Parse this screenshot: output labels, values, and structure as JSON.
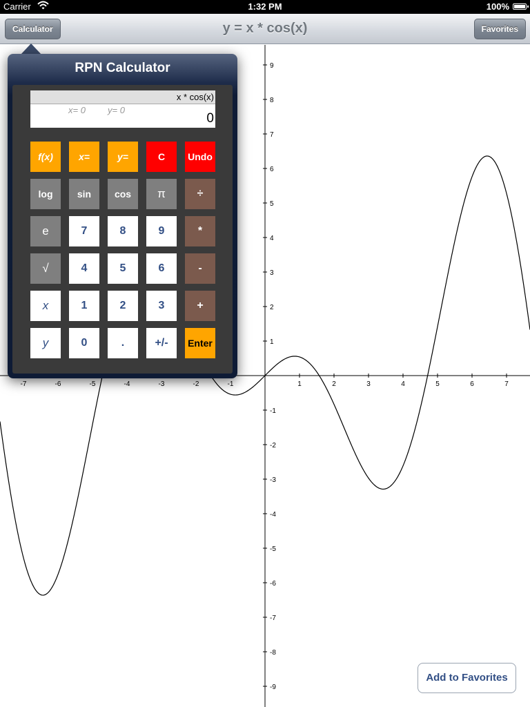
{
  "status_bar": {
    "carrier": "Carrier",
    "time": "1:32 PM",
    "battery": "100%"
  },
  "nav": {
    "title": "y = x * cos(x)",
    "left_button": "Calculator",
    "right_button": "Favorites"
  },
  "graph": {
    "function": "x * cos(x)",
    "x_ticks": [
      "-7",
      "-6",
      "-5",
      "-4",
      "-3",
      "-2",
      "-1",
      "1",
      "2",
      "3",
      "4",
      "5",
      "6",
      "7"
    ],
    "y_ticks": [
      "9",
      "8",
      "7",
      "6",
      "5",
      "4",
      "3",
      "2",
      "1",
      "-1",
      "-2",
      "-3",
      "-4",
      "-5",
      "-6",
      "-7",
      "-8",
      "-9"
    ]
  },
  "add_favorites": "Add to Favorites",
  "calculator": {
    "title": "RPN Calculator",
    "display": {
      "function": "x * cos(x)",
      "x_value": "x= 0",
      "y_value": "y= 0",
      "value": "0"
    },
    "keys": [
      [
        "f(x)",
        "x=",
        "y=",
        "C",
        "Undo"
      ],
      [
        "log",
        "sin",
        "cos",
        "π",
        "÷"
      ],
      [
        "e",
        "7",
        "8",
        "9",
        "*"
      ],
      [
        "√",
        "4",
        "5",
        "6",
        "-"
      ],
      [
        "x",
        "1",
        "2",
        "3",
        "+"
      ],
      [
        "y",
        "0",
        ".",
        "+/-",
        "Enter"
      ]
    ]
  },
  "colors": {
    "function_key": "#ffa500",
    "clear_key": "#ff0000",
    "func_key": "#7f7f7f",
    "operator_key": "#7b5a4d",
    "digit_key": "#ffffff",
    "digit_text": "#324f85"
  }
}
